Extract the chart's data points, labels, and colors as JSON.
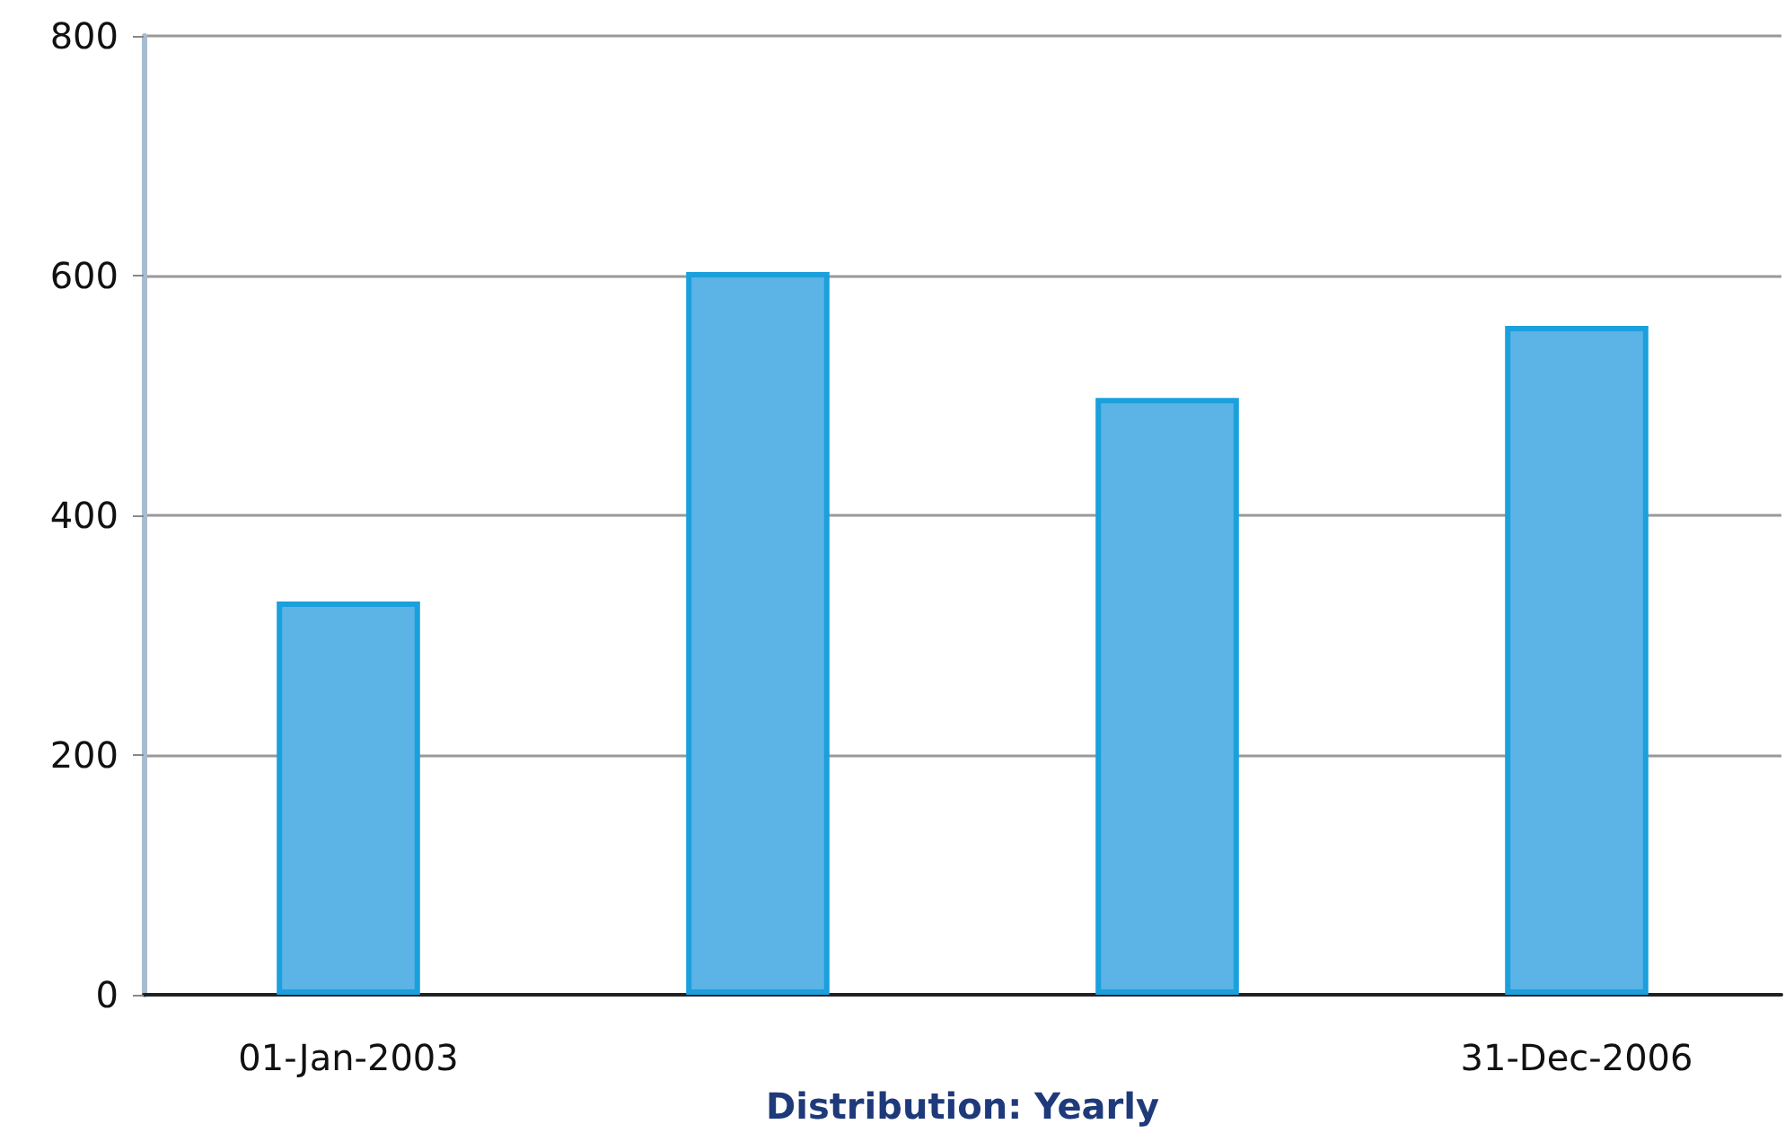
{
  "chart_data": {
    "type": "bar",
    "xlabel": "Distribution: Yearly",
    "categories": [
      "01-Jan-2003",
      null,
      null,
      "31-Dec-2006"
    ],
    "values": [
      328,
      603,
      498,
      558
    ],
    "color": "#5cb3e6",
    "ylim": [
      0,
      800
    ],
    "yticks": [
      0,
      200,
      400,
      600,
      800
    ],
    "grid": "y"
  }
}
